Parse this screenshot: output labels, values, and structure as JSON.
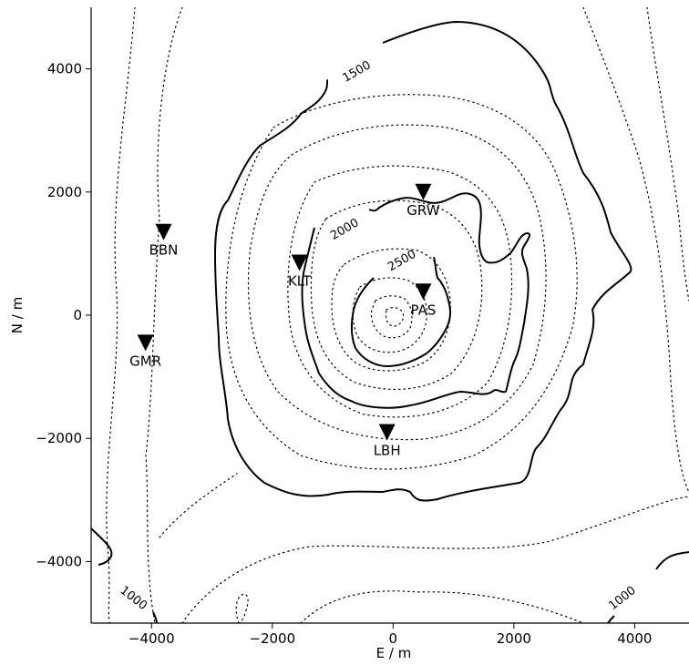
{
  "map": {
    "xlabel": "E / m",
    "ylabel": "N / m",
    "xlim": [
      -5000,
      4900
    ],
    "ylim": [
      -5000,
      5000
    ],
    "xticks": [
      -4000,
      -2000,
      0,
      2000,
      4000
    ],
    "yticks": [
      -4000,
      -2000,
      0,
      2000,
      4000
    ],
    "xtick_labels": [
      "−4000",
      "−2000",
      "0",
      "2000",
      "4000"
    ],
    "ytick_labels": [
      "−4000",
      "−2000",
      "0",
      "2000",
      "4000"
    ],
    "contour_labels": [
      {
        "text": "1500",
        "x": -600,
        "y": 3950,
        "angle": -30
      },
      {
        "text": "2000",
        "x": -800,
        "y": 1390,
        "angle": -30
      },
      {
        "text": "2500",
        "x": 150,
        "y": 880,
        "angle": -30
      },
      {
        "text": "1000",
        "x": -4300,
        "y": -4600,
        "angle": 38
      },
      {
        "text": "1000",
        "x": 3800,
        "y": -4600,
        "angle": -38
      }
    ],
    "stations": [
      {
        "name": "GRW",
        "x": 500,
        "y": 2000
      },
      {
        "name": "BBN",
        "x": -3800,
        "y": 1350
      },
      {
        "name": "KLT",
        "x": -1550,
        "y": 850
      },
      {
        "name": "PAS",
        "x": 500,
        "y": 380
      },
      {
        "name": "GMR",
        "x": -4100,
        "y": -450
      },
      {
        "name": "LBH",
        "x": -100,
        "y": -1900
      }
    ]
  }
}
